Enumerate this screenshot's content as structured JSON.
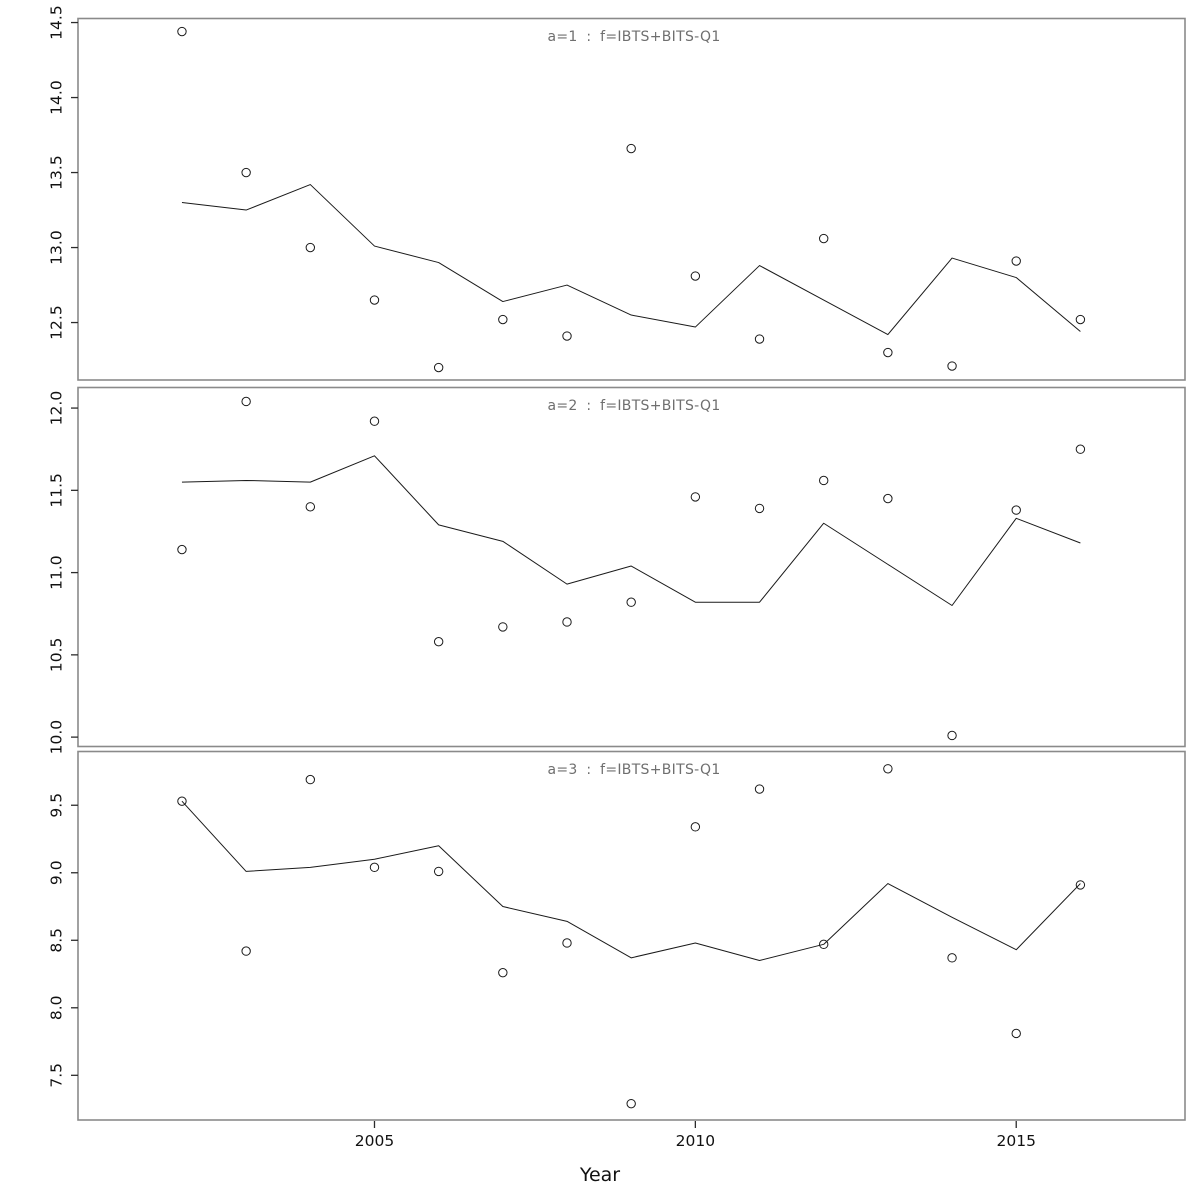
{
  "chart_data": {
    "type": "line",
    "description": "Three stacked lattice-style panels of observed points (open circles) and fitted lines versus year",
    "xlabel": "Year",
    "x": [
      2002,
      2003,
      2004,
      2005,
      2006,
      2007,
      2008,
      2009,
      2010,
      2011,
      2012,
      2013,
      2014,
      2015,
      2016
    ],
    "x_ticks": [
      2005,
      2010,
      2015
    ],
    "xlim": [
      2000.38,
      2017.63
    ],
    "grid": "off",
    "legend": "none",
    "panels": [
      {
        "title": "a=1 : f=IBTS+BITS-Q1",
        "ylim": [
          12.117,
          14.527
        ],
        "yticks": [
          12.5,
          13.0,
          13.5,
          14.0,
          14.5
        ],
        "ytick_labels": [
          "12.5",
          "13.0",
          "13.5",
          "14.0",
          "14.5"
        ],
        "series": [
          {
            "name": "observed",
            "style": "open-circles",
            "values": [
              14.44,
              13.5,
              13.0,
              12.65,
              12.2,
              12.52,
              12.41,
              13.66,
              12.81,
              12.39,
              13.06,
              12.3,
              12.21,
              12.91,
              12.52
            ]
          },
          {
            "name": "fitted",
            "style": "line",
            "values": [
              13.3,
              13.25,
              13.42,
              13.01,
              12.9,
              12.64,
              12.75,
              12.55,
              12.47,
              12.88,
              12.65,
              12.42,
              12.93,
              12.8,
              12.44
            ]
          }
        ]
      },
      {
        "title": "a=2 : f=IBTS+BITS-Q1",
        "ylim": [
          9.943,
          12.125
        ],
        "yticks": [
          10.0,
          10.5,
          11.0,
          11.5,
          12.0
        ],
        "ytick_labels": [
          "10.0",
          "10.5",
          "11.0",
          "11.5",
          "12.0"
        ],
        "series": [
          {
            "name": "observed",
            "style": "open-circles",
            "values": [
              11.14,
              12.04,
              11.4,
              11.92,
              10.58,
              10.67,
              10.7,
              10.82,
              11.46,
              11.39,
              11.56,
              11.45,
              10.01,
              11.38,
              11.75
            ]
          },
          {
            "name": "fitted",
            "style": "line",
            "values": [
              11.55,
              11.56,
              11.55,
              11.71,
              11.29,
              11.19,
              10.93,
              11.04,
              10.82,
              10.82,
              11.3,
              11.05,
              10.8,
              11.33,
              11.18
            ]
          }
        ]
      },
      {
        "title": "a=3 : f=IBTS+BITS-Q1",
        "ylim": [
          7.169,
          9.898
        ],
        "yticks": [
          7.5,
          8.0,
          8.5,
          9.0,
          9.5
        ],
        "ytick_labels": [
          "7.5",
          "8.0",
          "8.5",
          "9.0",
          "9.5"
        ],
        "series": [
          {
            "name": "observed",
            "style": "open-circles",
            "values": [
              9.53,
              8.42,
              9.69,
              9.04,
              9.01,
              8.26,
              8.48,
              7.29,
              9.34,
              9.62,
              8.47,
              9.77,
              8.37,
              7.81,
              8.91
            ]
          },
          {
            "name": "fitted",
            "style": "line",
            "values": [
              9.53,
              9.01,
              9.04,
              9.1,
              9.2,
              8.75,
              8.64,
              8.37,
              8.48,
              8.35,
              8.47,
              8.92,
              8.67,
              8.43,
              8.92
            ]
          }
        ]
      }
    ],
    "colors": {
      "background": "#ffffff",
      "line": "#1a1a1a",
      "point_stroke": "#1a1a1a",
      "panel_border": "#8a8a8a",
      "title": "#6f6f6f",
      "tick": "#2b2b2b",
      "tick_label": "#111111"
    }
  }
}
